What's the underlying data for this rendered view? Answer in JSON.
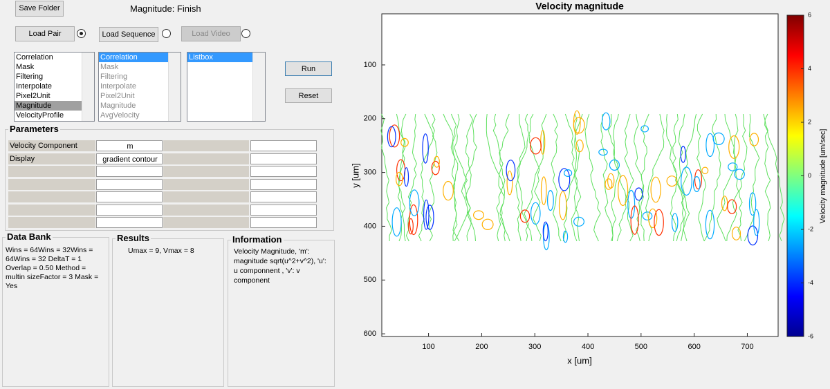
{
  "buttons": {
    "save_folder": "Save Folder",
    "load_pair": "Load Pair",
    "load_sequence": "Load Sequence",
    "load_video": "Load Video",
    "run": "Run",
    "reset": "Reset"
  },
  "status": "Magnitude: Finish",
  "lists": [
    [
      "Correlation",
      "Mask",
      "Filtering",
      "Interpolate",
      "Pixel2Unit",
      "Magnitude",
      "VelocityProfile"
    ],
    [
      "Correlation",
      "Mask",
      "Filtering",
      "Interpolate",
      "Pixel2Unit",
      "Magnitude",
      "AvgVelocity"
    ],
    [
      "Listbox"
    ]
  ],
  "parameters": {
    "title": "Parameters",
    "rows": [
      [
        "Velocity Component",
        "m"
      ],
      [
        "Display",
        "gradient contour"
      ]
    ]
  },
  "data_bank": {
    "title": "Data Bank",
    "text": "Wins = 64Wins = 32Wins = 64Wins = 32  DeltaT = 1  Overlap = 0.50  Method = multin  sizeFactor = 3  Mask = Yes"
  },
  "results": {
    "title": "Results",
    "text": "Umax = 9, Vmax = 8"
  },
  "information": {
    "title": "Information",
    "text": "Velocity Magnitude, 'm': magnitude sqrt(u^2+v^2), 'u': u componnent , 'v': v component"
  },
  "chart_data": {
    "type": "contour",
    "title": "Velocity magnitude",
    "x_label": "x [um]",
    "y_label": "y [um]",
    "xlim": [
      12,
      758
    ],
    "xticks": [
      100,
      200,
      300,
      400,
      500,
      600,
      700
    ],
    "ylim": [
      5,
      605
    ],
    "yticks": [
      100,
      200,
      300,
      400,
      500,
      600
    ],
    "y_reversed": true,
    "colorbar": {
      "label": "Velocity magnitude [um/sec]",
      "clim": [
        -6,
        6
      ],
      "ticks": [
        -6,
        -4,
        -2,
        0,
        2,
        4,
        6
      ],
      "colormap": "jet"
    }
  }
}
